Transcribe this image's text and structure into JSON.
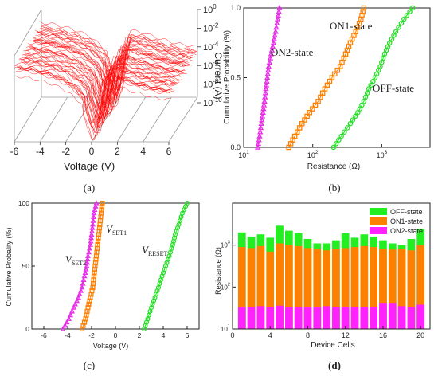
{
  "panels": {
    "a": {
      "label": "(a)"
    },
    "b": {
      "label": "(b)"
    },
    "c": {
      "label": "(c)"
    },
    "d": {
      "label": "(d)"
    }
  },
  "chart_data": [
    {
      "id": "a",
      "type": "line",
      "view": "3d",
      "xlabel": "Voltage (V)",
      "zlabel": "Current (A)",
      "x_ticks": [
        "-6",
        "-4",
        "-2",
        "0",
        "2",
        "4",
        "6"
      ],
      "z_ticks": [
        "10^0",
        "10^-2",
        "10^-4",
        "10^-6",
        "10^-8",
        "10^-10"
      ],
      "xlim": [
        -6,
        6
      ],
      "zlim_log10": [
        -11,
        0
      ],
      "color": "#ff0000",
      "curve_shape": {
        "x": [
          -6,
          -5,
          -4,
          -3,
          -2,
          -1.2,
          -0.6,
          0,
          0.3,
          0.6,
          1,
          2,
          3,
          4,
          5,
          6
        ],
        "log10_current": [
          -2,
          -2.2,
          -2.6,
          -3.1,
          -3.9,
          -5.0,
          -6.2,
          -9.5,
          -8.0,
          -5.0,
          -3.0,
          -3.3,
          -3.9,
          -4.4,
          -4.8,
          -5.0
        ]
      }
    },
    {
      "id": "b",
      "type": "scatter",
      "xlabel": "Resistance (Ω)",
      "ylabel": "Cumulative Probability (%)",
      "x_scale": "log",
      "xlim": [
        10,
        5000
      ],
      "ylim": [
        0,
        1
      ],
      "x_ticks": [
        {
          "value": 10,
          "label": "10^1"
        },
        {
          "value": 100,
          "label": "10^2"
        },
        {
          "value": 1000,
          "label": "10^3"
        }
      ],
      "y_ticks": [
        {
          "value": 0,
          "label": "0.0"
        },
        {
          "value": 0.5,
          "label": "0.5"
        },
        {
          "value": 1,
          "label": "1.0"
        }
      ],
      "series": [
        {
          "name": "ON2-state",
          "color": "#e62ee6",
          "marker": "triangle",
          "x": [
            16,
            17,
            18,
            19,
            20,
            21,
            22,
            23,
            25,
            27,
            29,
            31,
            33
          ],
          "y": [
            0.0,
            0.08,
            0.17,
            0.25,
            0.33,
            0.42,
            0.5,
            0.58,
            0.67,
            0.75,
            0.83,
            0.92,
            1.0
          ]
        },
        {
          "name": "ON1-state",
          "color": "#ff8000",
          "marker": "square",
          "x": [
            45,
            55,
            70,
            90,
            120,
            150,
            190,
            250,
            300,
            350,
            420,
            500,
            550
          ],
          "y": [
            0.0,
            0.08,
            0.17,
            0.25,
            0.33,
            0.42,
            0.5,
            0.58,
            0.67,
            0.75,
            0.83,
            0.92,
            1.0
          ]
        },
        {
          "name": "OFF-state",
          "color": "#22e022",
          "marker": "circle",
          "x": [
            200,
            260,
            350,
            450,
            550,
            650,
            800,
            950,
            1100,
            1300,
            1600,
            2100,
            2800
          ],
          "y": [
            0.0,
            0.08,
            0.17,
            0.25,
            0.33,
            0.42,
            0.5,
            0.58,
            0.67,
            0.75,
            0.83,
            0.92,
            1.0
          ]
        }
      ]
    },
    {
      "id": "c",
      "type": "scatter",
      "xlabel": "Voltage (V)",
      "ylabel": "Cumulative Probality (%)",
      "xlim": [
        -7,
        7
      ],
      "ylim": [
        0,
        100
      ],
      "x_ticks": [
        -6,
        -4,
        -2,
        0,
        2,
        4,
        6
      ],
      "y_ticks": [
        0,
        50,
        100
      ],
      "series": [
        {
          "name": "V_SET2",
          "label_main": "V",
          "label_sub": "SET2",
          "color": "#e62ee6",
          "marker": "triangle",
          "x": [
            -4.4,
            -3.9,
            -3.5,
            -3.1,
            -2.8,
            -2.6,
            -2.4,
            -2.3,
            -2.1,
            -2.0,
            -1.9,
            -1.8,
            -1.6
          ],
          "y": [
            0,
            8,
            17,
            25,
            33,
            42,
            50,
            58,
            67,
            75,
            83,
            92,
            100
          ]
        },
        {
          "name": "V_SET1",
          "label_main": "V",
          "label_sub": "SET1",
          "color": "#ff8000",
          "marker": "square",
          "x": [
            -2.8,
            -2.5,
            -2.3,
            -2.1,
            -1.9,
            -1.8,
            -1.7,
            -1.6,
            -1.5,
            -1.4,
            -1.3,
            -1.2,
            -1.1
          ],
          "y": [
            0,
            8,
            17,
            25,
            33,
            42,
            50,
            58,
            67,
            75,
            83,
            92,
            100
          ]
        },
        {
          "name": "V_RESET",
          "label_main": "V",
          "label_sub": "RESET",
          "color": "#22e022",
          "marker": "circle",
          "x": [
            2.4,
            2.7,
            3.0,
            3.3,
            3.6,
            3.9,
            4.2,
            4.5,
            4.8,
            5.0,
            5.3,
            5.6,
            6.0
          ],
          "y": [
            0,
            8,
            17,
            25,
            33,
            42,
            50,
            58,
            67,
            75,
            83,
            92,
            100
          ]
        }
      ]
    },
    {
      "id": "d",
      "type": "bar",
      "stacked": "overlay",
      "xlabel": "Device Cells",
      "ylabel": "Resistance (Ω)",
      "y_scale": "log",
      "ylim": [
        10,
        10000
      ],
      "xlim": [
        0,
        21
      ],
      "x_ticks": [
        0,
        4,
        8,
        12,
        16,
        20
      ],
      "y_ticks": [
        {
          "value": 10,
          "label": "10^1"
        },
        {
          "value": 100,
          "label": "10^2"
        },
        {
          "value": 1000,
          "label": "10^3"
        }
      ],
      "legend_position": "top-right",
      "categories": [
        1,
        2,
        3,
        4,
        5,
        6,
        7,
        8,
        9,
        10,
        11,
        12,
        13,
        14,
        15,
        16,
        17,
        18,
        19,
        20
      ],
      "series": [
        {
          "name": "OFF-state",
          "color": "#22ee22",
          "values": [
            2000,
            1600,
            1800,
            1500,
            2900,
            2200,
            1900,
            1400,
            1100,
            1100,
            1300,
            1900,
            1500,
            1800,
            1600,
            1300,
            1100,
            1000,
            1400,
            2400
          ]
        },
        {
          "name": "ON1-state",
          "color": "#ff8000",
          "values": [
            900,
            850,
            950,
            700,
            1100,
            1000,
            950,
            850,
            800,
            750,
            800,
            850,
            900,
            950,
            900,
            800,
            780,
            800,
            750,
            1000
          ]
        },
        {
          "name": "ON2-state",
          "color": "#ff22ff",
          "values": [
            33,
            33,
            35,
            33,
            36,
            33,
            34,
            33,
            33,
            35,
            34,
            33,
            34,
            33,
            34,
            42,
            42,
            35,
            33,
            38
          ]
        }
      ]
    }
  ]
}
